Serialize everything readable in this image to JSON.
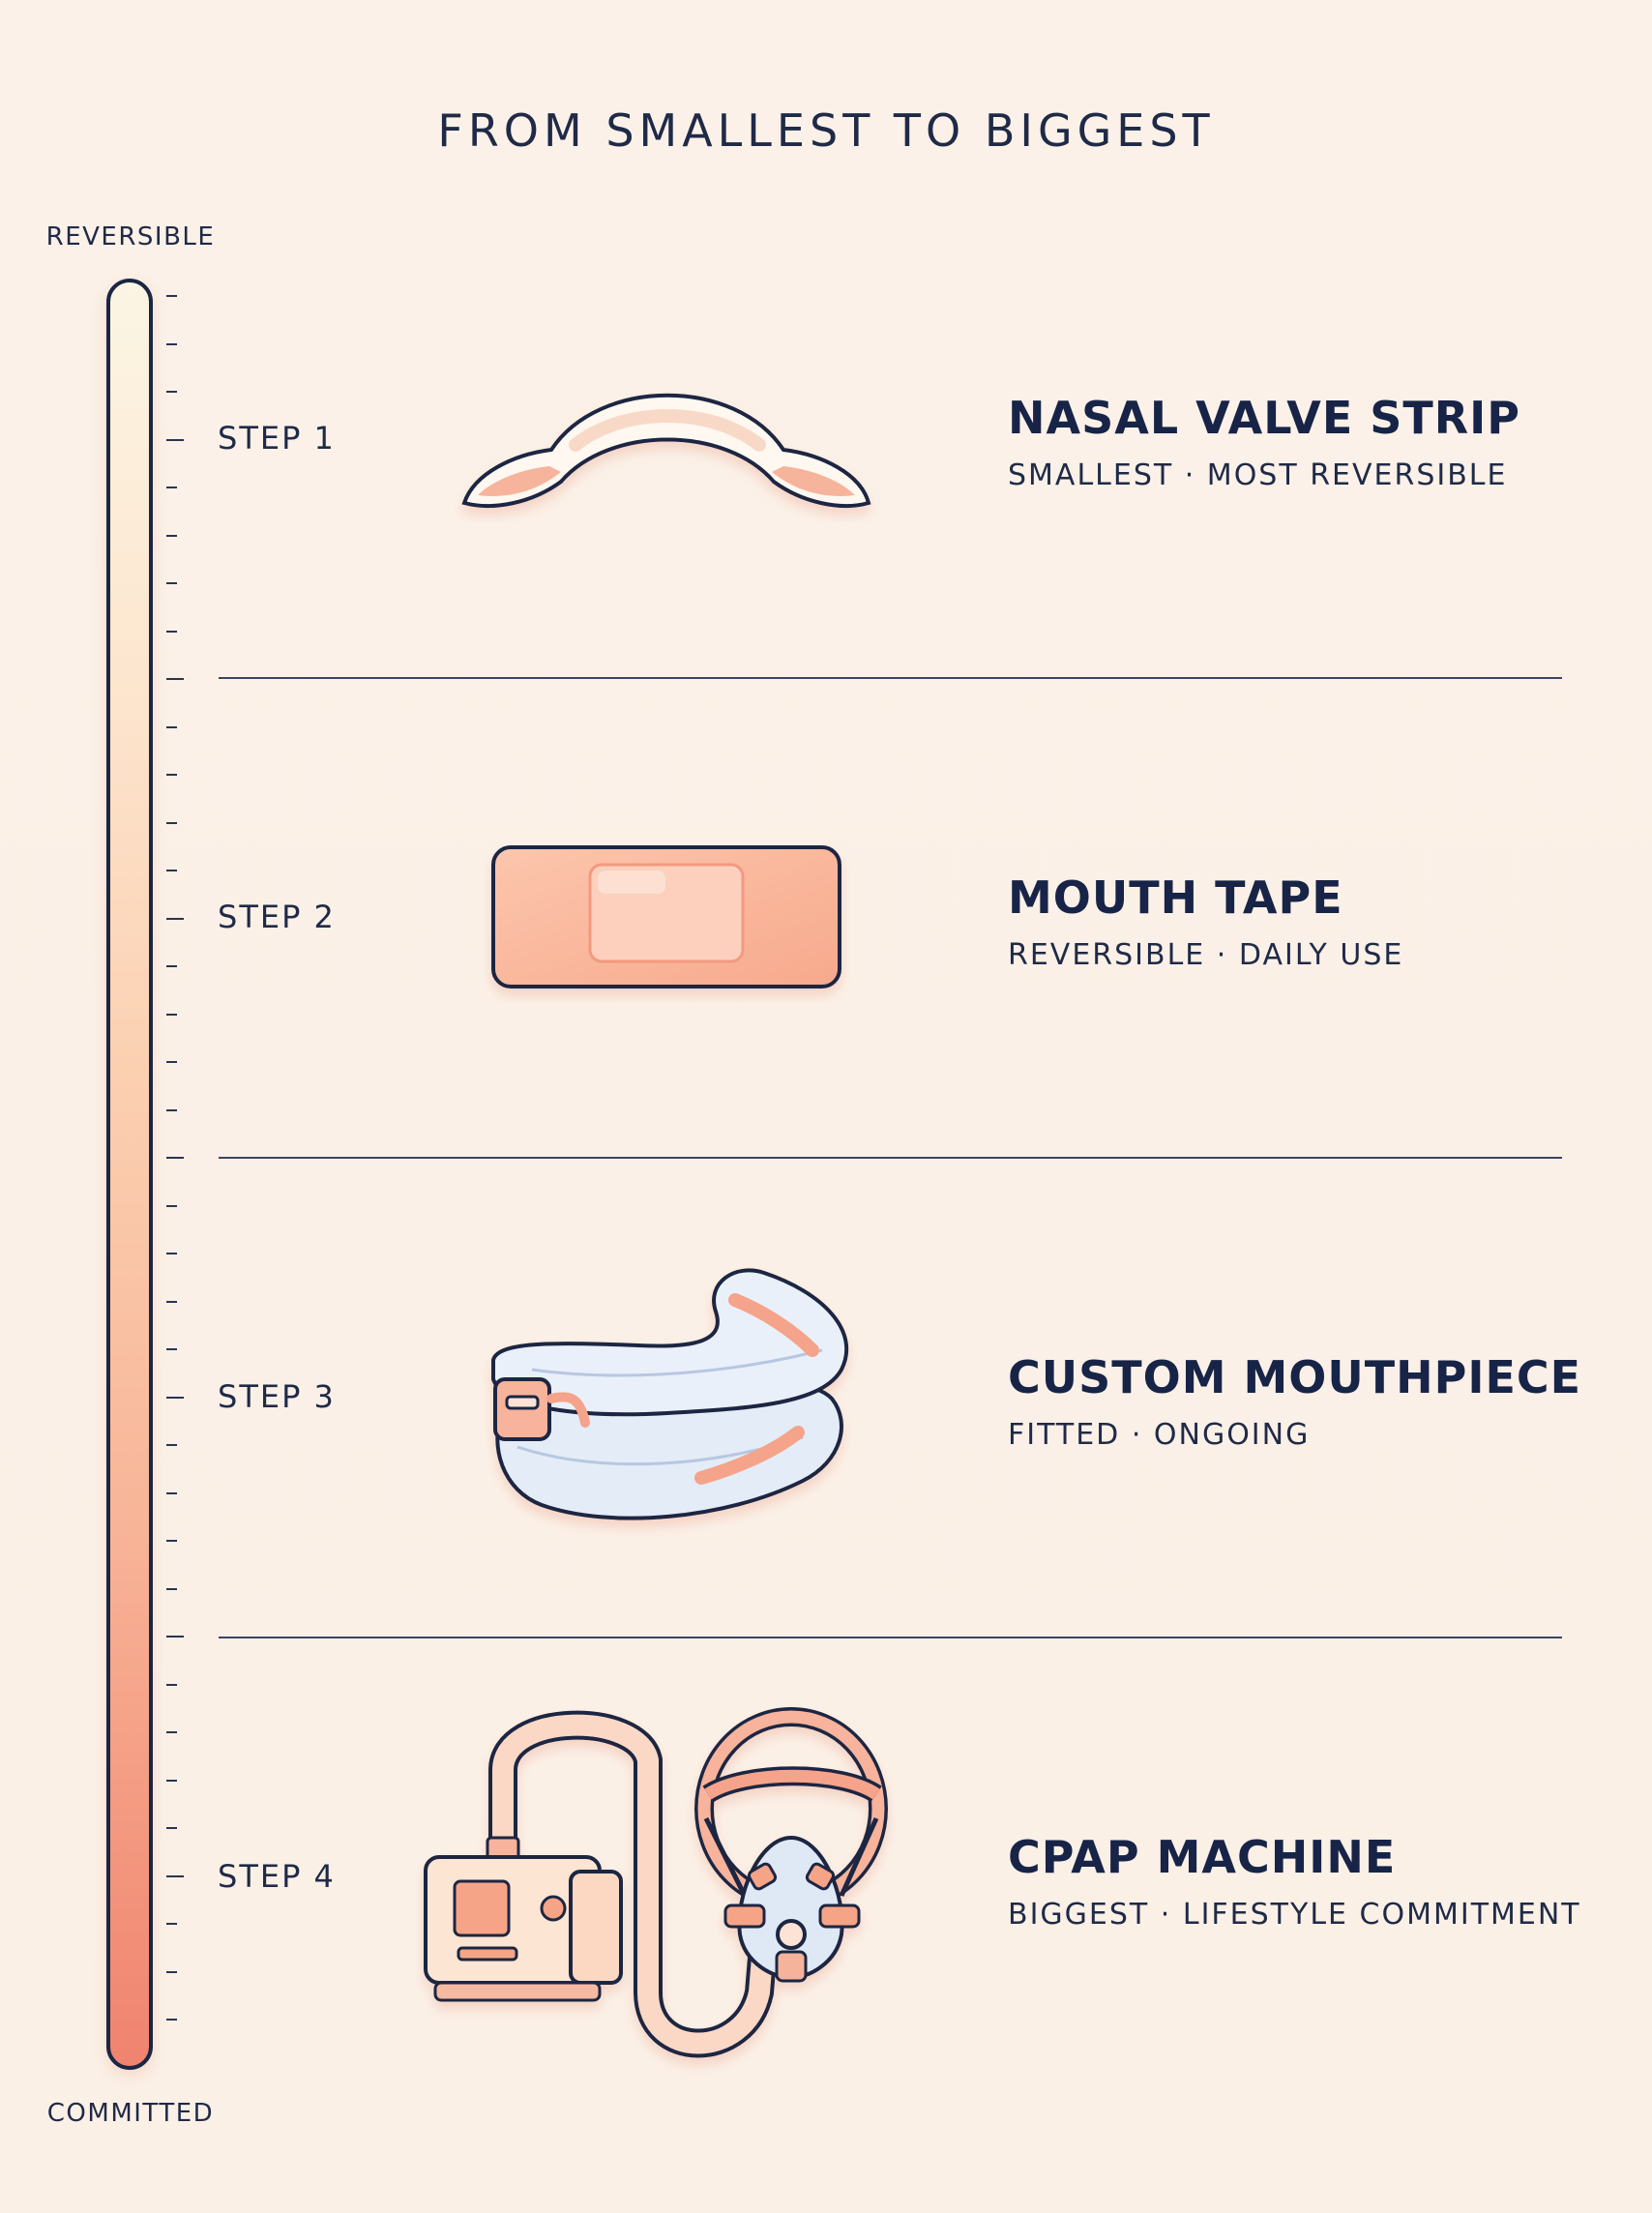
{
  "header": {
    "title": "FROM SMALLEST TO BIGGEST"
  },
  "scale": {
    "top_label": "REVERSIBLE",
    "bottom_label": "COMMITTED"
  },
  "steps": [
    {
      "step": "STEP 1",
      "name": "NASAL VALVE STRIP",
      "subtitle": "SMALLEST · MOST REVERSIBLE",
      "icon": "nasal-strip-icon"
    },
    {
      "step": "STEP 2",
      "name": "MOUTH TAPE",
      "subtitle": "REVERSIBLE · DAILY USE",
      "icon": "mouth-tape-icon"
    },
    {
      "step": "STEP 3",
      "name": "CUSTOM MOUTHPIECE",
      "subtitle": "FITTED · ONGOING",
      "icon": "mouthpiece-icon"
    },
    {
      "step": "STEP 4",
      "name": "CPAP MACHINE",
      "subtitle": "BIGGEST · LIFESTYLE COMMITMENT",
      "icon": "cpap-machine-icon"
    }
  ],
  "colors": {
    "ink": "#1b2643",
    "accent": "#f39b82",
    "background": "#fbf1e8"
  }
}
